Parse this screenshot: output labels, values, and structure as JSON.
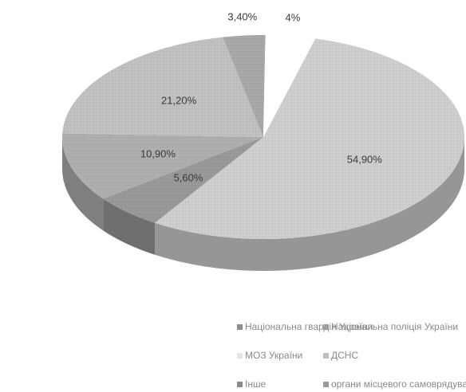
{
  "chart_data": {
    "type": "pie",
    "style": "3d",
    "title": "",
    "slices": [
      {
        "label": "Національна гвардія України",
        "value": 54.9,
        "display": "54,90%",
        "color": "#d0d0d0"
      },
      {
        "label": "МОЗ України",
        "value": 5.6,
        "display": "5,60%",
        "color": "#9a9a9a"
      },
      {
        "label": "органи місцевого самоврядування",
        "value": 10.9,
        "display": "10,90%",
        "color": "#b0b0b0"
      },
      {
        "label": "ДСНС",
        "value": 21.2,
        "display": "21,20%",
        "color": "#c2c2c2"
      },
      {
        "label": "Інше",
        "value": 3.4,
        "display": "3,40%",
        "color": "#aaaaaa"
      },
      {
        "label": "Національна поліція України",
        "value": 4,
        "display": "4%",
        "color": "#ffffff"
      }
    ]
  },
  "legend": {
    "items": [
      {
        "label": "Національна поліція України",
        "color": "#a8a8a8"
      },
      {
        "label": "Національна гвардія України",
        "color": "#8e8e8e"
      },
      {
        "label": "ДСНС",
        "color": "#bdbdbd"
      },
      {
        "label": "МОЗ України",
        "color": "#e4e4e4"
      },
      {
        "label": "органи місцевого самоврядування",
        "color": "#9a9a9a"
      },
      {
        "label": "Інше",
        "color": "#8a8a8a"
      }
    ]
  }
}
